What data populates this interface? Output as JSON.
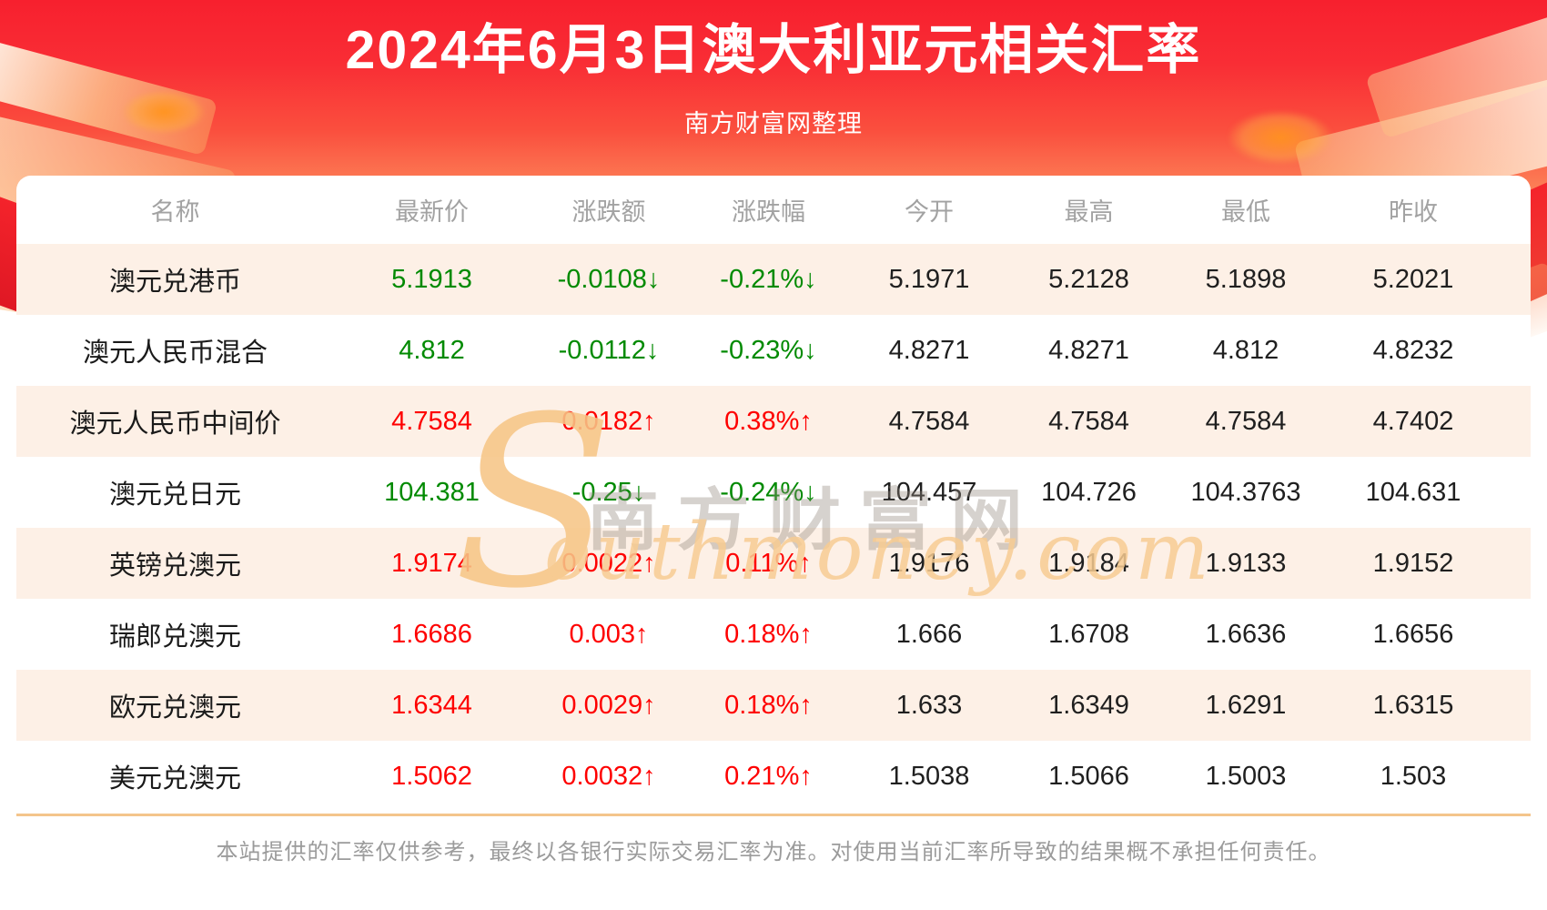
{
  "banner": {
    "title": "2024年6月3日澳大利亚元相关汇率",
    "subtitle": "南方财富网整理"
  },
  "watermark": {
    "s": "S",
    "cn": "南方财富网",
    "en": "outhmoney.com"
  },
  "table": {
    "headers": [
      "名称",
      "最新价",
      "涨跌额",
      "涨跌幅",
      "今开",
      "最高",
      "最低",
      "昨收"
    ],
    "rows": [
      {
        "name": "澳元兑港币",
        "latest": "5.1913",
        "change": "-0.0108↓",
        "pct": "-0.21%↓",
        "trend": "down",
        "open": "5.1971",
        "high": "5.2128",
        "low": "5.1898",
        "prev": "5.2021"
      },
      {
        "name": "澳元人民币混合",
        "latest": "4.812",
        "change": "-0.0112↓",
        "pct": "-0.23%↓",
        "trend": "down",
        "open": "4.8271",
        "high": "4.8271",
        "low": "4.812",
        "prev": "4.8232"
      },
      {
        "name": "澳元人民币中间价",
        "latest": "4.7584",
        "change": "0.0182↑",
        "pct": "0.38%↑",
        "trend": "up",
        "open": "4.7584",
        "high": "4.7584",
        "low": "4.7584",
        "prev": "4.7402"
      },
      {
        "name": "澳元兑日元",
        "latest": "104.381",
        "change": "-0.25↓",
        "pct": "-0.24%↓",
        "trend": "down",
        "open": "104.457",
        "high": "104.726",
        "low": "104.3763",
        "prev": "104.631"
      },
      {
        "name": "英镑兑澳元",
        "latest": "1.9174",
        "change": "0.0022↑",
        "pct": "0.11%↑",
        "trend": "up",
        "open": "1.9176",
        "high": "1.9184",
        "low": "1.9133",
        "prev": "1.9152"
      },
      {
        "name": "瑞郎兑澳元",
        "latest": "1.6686",
        "change": "0.003↑",
        "pct": "0.18%↑",
        "trend": "up",
        "open": "1.666",
        "high": "1.6708",
        "low": "1.6636",
        "prev": "1.6656"
      },
      {
        "name": "欧元兑澳元",
        "latest": "1.6344",
        "change": "0.0029↑",
        "pct": "0.18%↑",
        "trend": "up",
        "open": "1.633",
        "high": "1.6349",
        "low": "1.6291",
        "prev": "1.6315"
      },
      {
        "name": "美元兑澳元",
        "latest": "1.5062",
        "change": "0.0032↑",
        "pct": "0.21%↑",
        "trend": "up",
        "open": "1.5038",
        "high": "1.5066",
        "low": "1.5003",
        "prev": "1.503"
      }
    ]
  },
  "footer": {
    "disclaimer": "本站提供的汇率仅供参考，最终以各银行实际交易汇率为准。对使用当前汇率所导致的结果概不承担任何责任。"
  },
  "colors": {
    "up": "#fe0000",
    "down": "#018a01",
    "banner_top": "#f7202e",
    "banner_bottom": "#fdab7f",
    "zebra_row": "#fdf0e6",
    "header_text": "#a2a2a2",
    "divider": "#f4c58b"
  }
}
